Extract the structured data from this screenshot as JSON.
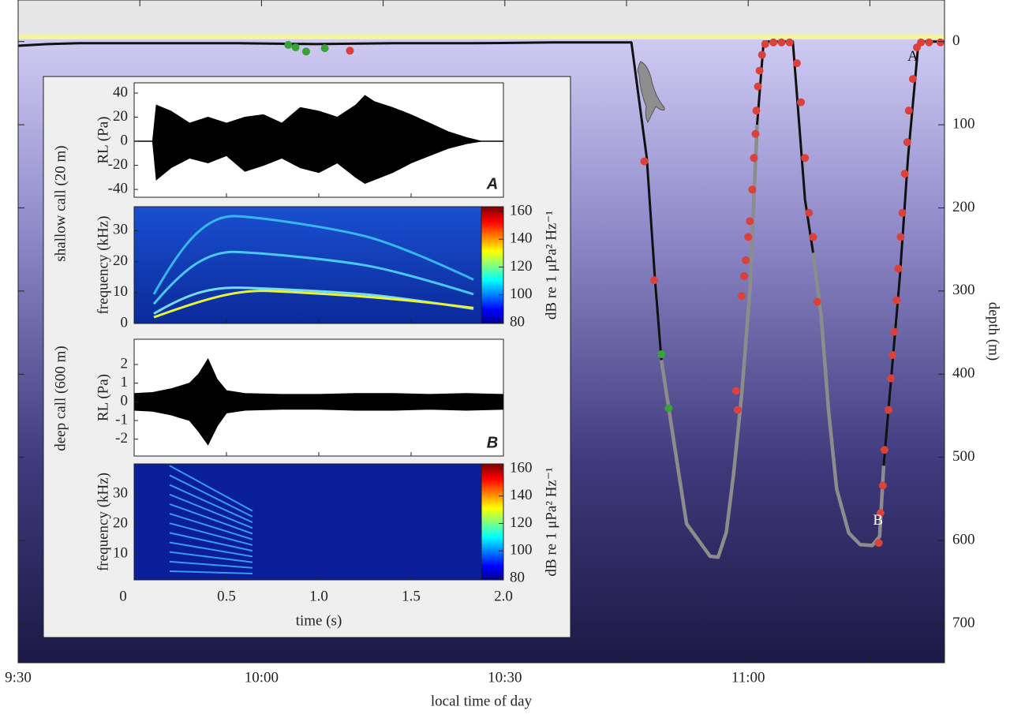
{
  "chart_data": [
    {
      "type": "line",
      "xlabel": "local time of day",
      "ylabel": "depth (m)",
      "xlim": [
        570,
        684.2
      ],
      "xticks": [
        {
          "value": 570,
          "label": "9:30"
        },
        {
          "value": 600,
          "label": "10:00"
        },
        {
          "value": 630,
          "label": "10:30"
        },
        {
          "value": 660,
          "label": "11:00"
        }
      ],
      "xminorticks": [
        585,
        615,
        645,
        675
      ],
      "ylim": [
        -50,
        747
      ],
      "y_inverted": true,
      "yticks": [
        0,
        100,
        200,
        300,
        400,
        500,
        600,
        700
      ],
      "series": [
        {
          "style": "line",
          "color": "#111111",
          "x": [
            570,
            573.6,
            577.5,
            587.2,
            597,
            606.7,
            616.4,
            626.1,
            635.9,
            645.6,
            647.5,
            648.5,
            649.3,
            null,
            661.1,
            661.9,
            665.5,
            667.0,
            668.0,
            null,
            676.7,
            678.7,
            679.7,
            681.0,
            684.2
          ],
          "values": [
            5,
            3,
            2,
            2,
            2,
            3,
            2,
            2,
            1,
            1,
            140,
            285,
            383,
            null,
            100,
            0,
            0,
            190,
            254,
            null,
            510,
            282,
            140,
            0,
            0
          ]
        },
        {
          "style": "line",
          "color": "#8c8c8c",
          "x": [
            649.3,
            650.5,
            652.4,
            653.9,
            655.3,
            656.3,
            657.3,
            658.2,
            659.2,
            660.2,
            661.1,
            null,
            668.0,
            669.0,
            669.9,
            670.9,
            672.4,
            673.8,
            675.3,
            676.2,
            676.7
          ],
          "values": [
            383,
            460,
            580,
            600,
            619,
            620,
            590,
            520,
            424,
            300,
            100,
            null,
            254,
            330,
            443,
            538,
            591,
            605,
            606,
            595,
            510
          ]
        },
        {
          "style": "points",
          "color": "#d9413a",
          "x": [
            610.9,
            647.2,
            648.4,
            658.5,
            658.7,
            659.2,
            659.5,
            659.7,
            660.0,
            660.2,
            660.5,
            660.7,
            660.9,
            661.0,
            661.2,
            661.4,
            661.7,
            662.1,
            663.1,
            664.1,
            665.1,
            666.0,
            666.5,
            667.0,
            667.5,
            668.0,
            668.5,
            676.1,
            676.3,
            676.6,
            676.8,
            677.3,
            677.6,
            677.8,
            678.0,
            678.3,
            678.5,
            678.8,
            679.0,
            679.3,
            679.6,
            679.8,
            680.3,
            680.8,
            681.3,
            682.3,
            683.7
          ],
          "values": [
            11,
            144,
            287,
            420,
            443,
            306,
            282,
            263,
            235,
            216,
            178,
            140,
            111,
            83,
            54,
            35,
            16,
            3,
            1,
            1,
            1,
            26,
            73,
            140,
            206,
            235,
            313,
            603,
            567,
            534,
            491,
            443,
            405,
            377,
            349,
            311,
            273,
            235,
            206,
            159,
            121,
            83,
            45,
            7,
            1,
            1,
            1
          ]
        },
        {
          "style": "points",
          "color": "#3aa23a",
          "x": [
            603.3,
            604.2,
            605.5,
            607.8,
            649.3,
            650.2
          ],
          "values": [
            4,
            7,
            12,
            8,
            376,
            441
          ]
        }
      ],
      "annotations": [
        {
          "text": "A",
          "x": 680.3,
          "y": 19
        },
        {
          "text": "B",
          "x": 676.0,
          "y": 577
        }
      ]
    },
    {
      "type": "waveform",
      "ylabel": "RL (Pa)",
      "group_label": "shallow call (20 m)",
      "panel_label": "A",
      "xlim": [
        0,
        2
      ],
      "xticks": [
        0,
        0.5,
        1,
        1.5,
        2
      ],
      "ylim": [
        -46.5,
        48.5
      ],
      "yticks": [
        40,
        20,
        0,
        -20,
        -40
      ],
      "series": [
        {
          "color": "#000000",
          "x": [
            0.1,
            0.12,
            0.2,
            0.3,
            0.4,
            0.5,
            0.6,
            0.7,
            0.8,
            0.9,
            1.0,
            1.1,
            1.2,
            1.25,
            1.3,
            1.4,
            1.5,
            1.6,
            1.7,
            1.8,
            1.88
          ],
          "values": [
            0,
            30,
            25,
            15,
            20,
            15,
            20,
            22,
            15,
            28,
            25,
            20,
            30,
            38,
            33,
            28,
            22,
            15,
            8,
            3,
            0
          ]
        },
        {
          "color": "#000000",
          "x": [
            0.1,
            0.12,
            0.2,
            0.3,
            0.4,
            0.5,
            0.6,
            0.7,
            0.8,
            0.9,
            1.0,
            1.1,
            1.2,
            1.25,
            1.3,
            1.4,
            1.5,
            1.6,
            1.7,
            1.8,
            1.88
          ],
          "values": [
            0,
            -32,
            -22,
            -14,
            -18,
            -12,
            -25,
            -20,
            -14,
            -22,
            -26,
            -18,
            -30,
            -35,
            -32,
            -26,
            -18,
            -12,
            -6,
            -2,
            0
          ]
        }
      ]
    },
    {
      "type": "spectrogram",
      "ylabel": "frequency (kHz)",
      "xlim": [
        0,
        2
      ],
      "xticks": [
        0,
        0.5,
        1,
        1.5,
        2
      ],
      "ylim": [
        0,
        37.7
      ],
      "yticks": [
        0,
        10,
        20,
        30
      ],
      "colorbar": {
        "label": "dB re 1 μPa² Hz⁻¹",
        "lim": [
          79.4,
          163.4
        ],
        "ticks": [
          80,
          100,
          120,
          140,
          160
        ]
      }
    },
    {
      "type": "waveform",
      "ylabel": "RL (Pa)",
      "group_label": "deep call (600 m)",
      "panel_label": "B",
      "xlim": [
        0,
        2
      ],
      "xticks": [
        0,
        0.5,
        1,
        1.5,
        2
      ],
      "ylim": [
        -2.9,
        3.35
      ],
      "yticks": [
        2,
        1,
        0,
        -1,
        -2
      ],
      "series": [
        {
          "color": "#000000",
          "x": [
            0,
            0.1,
            0.2,
            0.3,
            0.35,
            0.4,
            0.45,
            0.5,
            0.6,
            0.8,
            1.0,
            1.2,
            1.4,
            1.6,
            1.8,
            2.0
          ],
          "values": [
            0.45,
            0.5,
            0.7,
            1.0,
            1.5,
            2.3,
            1.2,
            0.6,
            0.45,
            0.4,
            0.4,
            0.45,
            0.45,
            0.4,
            0.45,
            0.4
          ]
        },
        {
          "color": "#000000",
          "x": [
            0,
            0.1,
            0.2,
            0.3,
            0.35,
            0.4,
            0.45,
            0.5,
            0.6,
            0.8,
            1.0,
            1.2,
            1.4,
            1.6,
            1.8,
            2.0
          ],
          "values": [
            -0.45,
            -0.5,
            -0.7,
            -1.0,
            -1.6,
            -2.3,
            -1.3,
            -0.6,
            -0.45,
            -0.4,
            -0.4,
            -0.45,
            -0.45,
            -0.4,
            -0.45,
            -0.4
          ]
        }
      ]
    },
    {
      "type": "spectrogram",
      "ylabel": "frequency (kHz)",
      "xlabel": "time (s)",
      "xlim": [
        0,
        2
      ],
      "xticks": [
        0,
        0.5,
        {
          "value": 1,
          "label": "1.0"
        },
        1.5,
        {
          "value": 2,
          "label": "2.0"
        }
      ],
      "ylim": [
        1.3,
        40
      ],
      "yticks": [
        10,
        20,
        30
      ],
      "colorbar": {
        "label": "dB re 1 μPa² Hz⁻¹",
        "lim": [
          78.9,
          163.4
        ],
        "ticks": [
          80,
          100,
          120,
          140,
          160
        ]
      }
    }
  ]
}
